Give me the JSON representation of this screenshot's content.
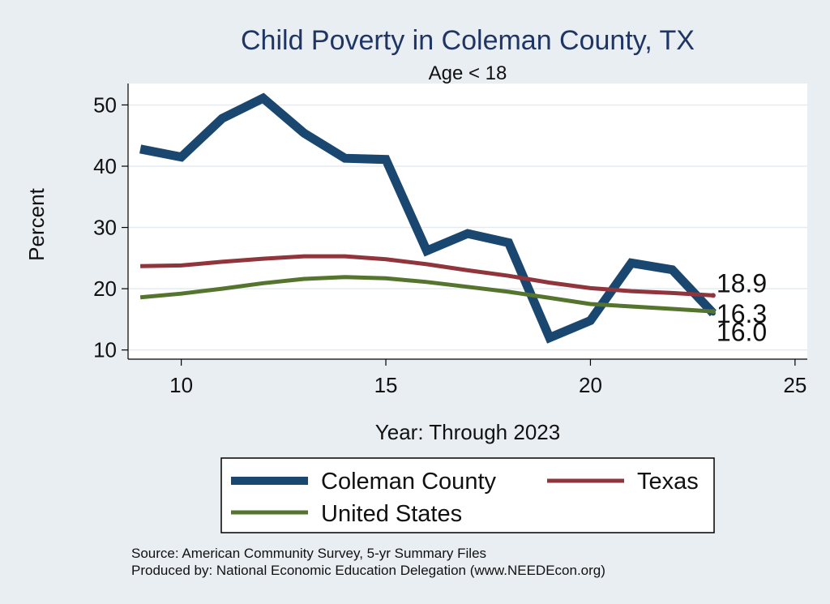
{
  "chart_data": {
    "type": "line",
    "title": "Child Poverty in Coleman County, TX",
    "subtitle": "Age < 18",
    "xlabel": "Year: Through 2023",
    "ylabel": "Percent",
    "xlim": [
      8.7,
      25.3
    ],
    "ylim": [
      8.5,
      53.5
    ],
    "xticks": [
      10,
      15,
      20,
      25
    ],
    "yticks": [
      10,
      20,
      30,
      40,
      50
    ],
    "grid": true,
    "legend_position": "bottom",
    "x": [
      9,
      10,
      11,
      12,
      13,
      14,
      15,
      16,
      17,
      18,
      19,
      20,
      21,
      22,
      23
    ],
    "series": [
      {
        "name": "Coleman County",
        "color": "#1a476f",
        "values": [
          42.8,
          41.5,
          47.8,
          51.1,
          45.4,
          41.3,
          41.1,
          26.2,
          29.0,
          27.5,
          12.0,
          14.8,
          24.2,
          23.1,
          16.0
        ],
        "end_label": "16.0"
      },
      {
        "name": "Texas",
        "color": "#90353b",
        "values": [
          23.7,
          23.8,
          24.4,
          24.9,
          25.3,
          25.3,
          24.8,
          24.0,
          23.0,
          22.1,
          21.0,
          20.1,
          19.6,
          19.3,
          18.9
        ],
        "end_label": "18.9"
      },
      {
        "name": "United States",
        "color": "#55752f",
        "values": [
          18.6,
          19.2,
          20.0,
          20.9,
          21.6,
          21.9,
          21.7,
          21.1,
          20.3,
          19.5,
          18.5,
          17.5,
          17.1,
          16.7,
          16.3
        ],
        "end_label": "16.3"
      }
    ],
    "notes": [
      "Source: American Community Survey, 5-yr Summary Files",
      "Produced by: National Economic Education Delegation (www.NEEDEcon.org)"
    ]
  }
}
